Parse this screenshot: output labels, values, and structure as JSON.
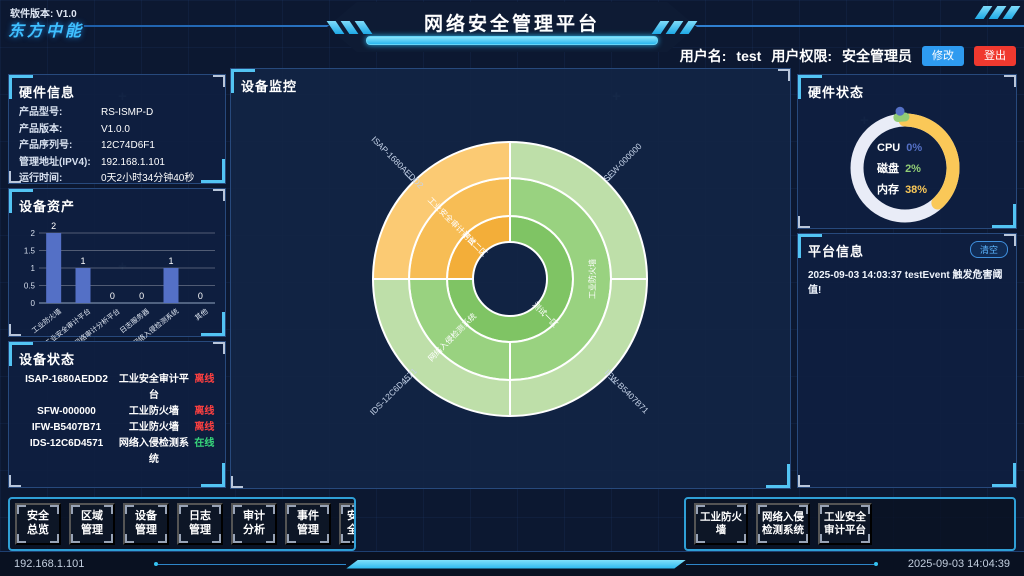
{
  "header": {
    "version": "软件版本: V1.0",
    "logo": "东方中能",
    "title": "网络安全管理平台",
    "user_label": "用户名:",
    "username": "test",
    "perm_label": "用户权限:",
    "role": "安全管理员",
    "modify_button": "修改",
    "logout_button": "登出"
  },
  "panels": {
    "hardware_info": {
      "title": "硬件信息",
      "rows": [
        {
          "label": "产品型号:",
          "value": "RS-ISMP-D"
        },
        {
          "label": "产品版本:",
          "value": "V1.0.0"
        },
        {
          "label": "产品序列号:",
          "value": "12C74D6F1"
        },
        {
          "label": "管理地址(IPV4):",
          "value": "192.168.1.101"
        },
        {
          "label": "运行时间:",
          "value": "0天2小时34分钟40秒"
        }
      ]
    },
    "device_assets": {
      "title": "设备资产"
    },
    "device_status": {
      "title": "设备状态",
      "rows": [
        {
          "id": "ISAP-1680AEDD2",
          "type": "工业安全审计平台",
          "status": "离线",
          "online": false
        },
        {
          "id": "SFW-000000",
          "type": "工业防火墙",
          "status": "离线",
          "online": false
        },
        {
          "id": "IFW-B5407B71",
          "type": "工业防火墙",
          "status": "离线",
          "online": false
        },
        {
          "id": "IDS-12C6D4571",
          "type": "网络入侵检测系统",
          "status": "在线",
          "online": true
        }
      ]
    },
    "device_monitor": {
      "title": "设备监控"
    },
    "hardware_status": {
      "title": "硬件状态"
    },
    "platform_info": {
      "title": "平台信息",
      "clear_button": "清空",
      "messages": [
        "2025-09-03 14:03:37 testEvent 触发危害阈值!"
      ]
    }
  },
  "chart_data": [
    {
      "type": "bar",
      "title": "设备资产",
      "categories": [
        "工业防火墙",
        "工业安全审计平台",
        "工业网络审计分析平台",
        "日志服务器",
        "网络入侵检测系统",
        "其他"
      ],
      "values": [
        2,
        1,
        0,
        0,
        1,
        0
      ],
      "xlabel": "",
      "ylabel": "",
      "ylim": [
        0,
        2
      ],
      "yticks": [
        0,
        0.5,
        1,
        1.5,
        2
      ],
      "bar_color": "#5470c6",
      "grid": true
    },
    {
      "type": "sunburst",
      "title": "设备监控",
      "rings": [
        {
          "name": "zones",
          "segments": [
            {
              "label": "测试二区",
              "start": 270,
              "end": 360,
              "color": "#f3ae39",
              "rotate": 45
            },
            {
              "label": "测试一区",
              "start": 0,
              "end": 270,
              "color": "#7fc464",
              "rotate": 45
            }
          ]
        },
        {
          "name": "device_types",
          "segments": [
            {
              "label": "工业安全审计平台",
              "start": 270,
              "end": 360,
              "color": "#f7bd55",
              "rotate": 45
            },
            {
              "label": "工业防火墙",
              "start": 0,
              "end": 180,
              "color": "#99d280",
              "rotate": -90
            },
            {
              "label": "网络入侵检测系统",
              "start": 180,
              "end": 270,
              "color": "#99d280",
              "rotate": -45
            }
          ]
        },
        {
          "name": "devices",
          "segments": [
            {
              "label": "ISAP-1680AEDD2",
              "start": 270,
              "end": 360,
              "color": "#fbca73",
              "rotate": 45,
              "outside": true
            },
            {
              "label": "SFW-000000",
              "start": 0,
              "end": 90,
              "color": "#bedfa9",
              "rotate": -45,
              "outside": true
            },
            {
              "label": "IFW-B5407B71",
              "start": 90,
              "end": 180,
              "color": "#bedfa9",
              "rotate": 45,
              "outside": true
            },
            {
              "label": "IDS-12C6D4571",
              "start": 180,
              "end": 270,
              "color": "#bedfa9",
              "rotate": -45,
              "outside": true
            }
          ]
        }
      ]
    },
    {
      "type": "donut",
      "title": "硬件状态",
      "ring_color": "#e9ecf7",
      "metrics": [
        {
          "label": "CPU",
          "value": 0,
          "unit": "%",
          "color": "#5470c6"
        },
        {
          "label": "磁盘",
          "value": 2,
          "unit": "%",
          "color": "#91cc75"
        },
        {
          "label": "内存",
          "value": 38,
          "unit": "%",
          "color": "#fac858"
        }
      ]
    }
  ],
  "bottom_nav": {
    "left": [
      "安全总览",
      "区域管理",
      "设备管理",
      "日志管理",
      "审计分析",
      "事件管理",
      "安全"
    ],
    "right": [
      "工业防火墙",
      "网络入侵检测系统",
      "工业安全审计平台"
    ]
  },
  "status_bar": {
    "ip": "192.168.1.101",
    "datetime": "2025-09-03 14:04:39"
  }
}
